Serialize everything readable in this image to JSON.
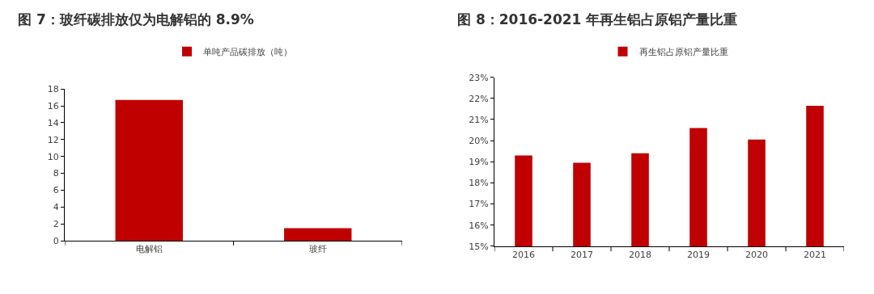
{
  "chart_data": [
    {
      "type": "bar",
      "title": "图 7：玻纤碳排放仅为电解铝的 8.9%",
      "categories": [
        "电解铝",
        "玻纤"
      ],
      "series": [
        {
          "name": "单吨产品碳排放（吨）",
          "color": "#c00000",
          "values": [
            16.7,
            1.5
          ]
        }
      ],
      "ylim": [
        0,
        18
      ],
      "yticks": [
        0,
        2,
        4,
        6,
        8,
        10,
        12,
        14,
        16,
        18
      ],
      "grid": false,
      "legend": "top"
    },
    {
      "type": "bar",
      "title": "图 8：2016-2021 年再生铝占原铝产量比重",
      "categories": [
        "2016",
        "2017",
        "2018",
        "2019",
        "2020",
        "2021"
      ],
      "series": [
        {
          "name": "再生铝占原铝产量比重",
          "color": "#c00000",
          "values": [
            19.3,
            18.95,
            19.4,
            20.6,
            20.05,
            21.65
          ]
        }
      ],
      "ylim": [
        15,
        23
      ],
      "yticks": [
        {
          "value": 15,
          "label": "15%"
        },
        {
          "value": 16,
          "label": "16%"
        },
        {
          "value": 17,
          "label": "17%"
        },
        {
          "value": 18,
          "label": "18%"
        },
        {
          "value": 19,
          "label": "19%"
        },
        {
          "value": 20,
          "label": "20%"
        },
        {
          "value": 21,
          "label": "21%"
        },
        {
          "value": 22,
          "label": "22%"
        },
        {
          "value": 23,
          "label": "23%"
        }
      ],
      "grid": false,
      "legend": "top"
    }
  ]
}
